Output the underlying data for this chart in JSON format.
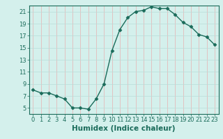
{
  "x": [
    0,
    1,
    2,
    3,
    4,
    5,
    6,
    7,
    8,
    9,
    10,
    11,
    12,
    13,
    14,
    15,
    16,
    17,
    18,
    19,
    20,
    21,
    22,
    23
  ],
  "y": [
    8.0,
    7.5,
    7.5,
    7.0,
    6.5,
    5.0,
    5.0,
    4.8,
    6.5,
    9.0,
    14.5,
    18.0,
    20.0,
    21.0,
    21.2,
    21.8,
    21.5,
    21.5,
    20.5,
    19.2,
    18.5,
    17.2,
    16.8,
    15.5
  ],
  "line_color": "#1a6b5a",
  "marker": "D",
  "marker_size": 2.5,
  "bg_color": "#d4f0ec",
  "grid_color_v": "#e8b0b0",
  "grid_color_h": "#b8ddd8",
  "xlabel": "Humidex (Indice chaleur)",
  "xlabel_fontsize": 7.5,
  "xlim": [
    -0.5,
    23.5
  ],
  "ylim": [
    4.0,
    22.0
  ],
  "yticks": [
    5,
    7,
    9,
    11,
    13,
    15,
    17,
    19,
    21
  ],
  "xticks": [
    0,
    1,
    2,
    3,
    4,
    5,
    6,
    7,
    8,
    9,
    10,
    11,
    12,
    13,
    14,
    15,
    16,
    17,
    18,
    19,
    20,
    21,
    22,
    23
  ],
  "tick_label_fontsize": 6,
  "tick_color": "#1a6b5a",
  "spine_color": "#1a6b5a",
  "linewidth": 1.0
}
